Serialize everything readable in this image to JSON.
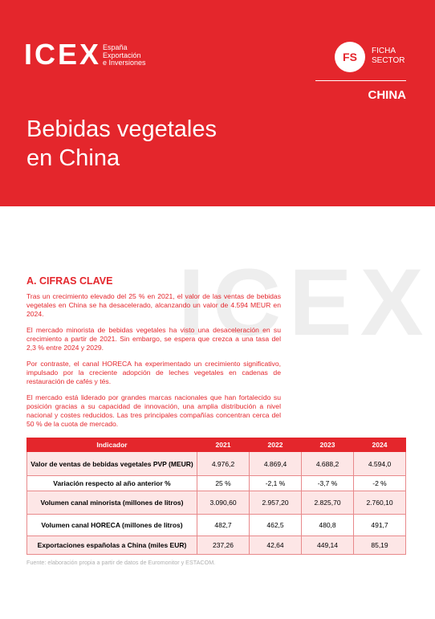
{
  "header": {
    "logo": "ICEX",
    "logo_sub": [
      "España",
      "Exportación",
      "e Inversiones"
    ],
    "badge": "FS",
    "badge_text": [
      "FICHA",
      "SECTOR"
    ],
    "country": "CHINA",
    "title": [
      "Bebidas vegetales",
      "en China"
    ]
  },
  "section": {
    "heading": "A. CIFRAS CLAVE",
    "paragraphs": [
      "Tras un crecimiento elevado del 25 % en 2021, el valor de las ventas de bebidas vegetales en China se ha desacelerado, alcanzando un valor de 4.594 MEUR en 2024.",
      "El mercado minorista de bebidas vegetales ha visto una desaceleración en su crecimiento a partir de 2021. Sin embargo, se espera que crezca a una tasa del 2,3 % entre 2024 y 2029.",
      "Por contraste, el canal HORECA ha experimentado un crecimiento significativo, impulsado por la creciente adopción de leches vegetales en cadenas de restauración de cafés y tés.",
      "El mercado está liderado por grandes marcas nacionales que han fortalecido su posición gracias a su capacidad de innovación, una amplia distribución a nivel nacional y costes reducidos. Las tres principales compañías concentran cerca del 50 % de la cuota de mercado."
    ]
  },
  "table": {
    "columns": [
      "Indicador",
      "2021",
      "2022",
      "2023",
      "2024"
    ],
    "rows": [
      [
        "Valor de ventas de bebidas vegetales PVP (MEUR)",
        "4.976,2",
        "4.869,4",
        "4.688,2",
        "4.594,0"
      ],
      [
        "Variación respecto al año anterior %",
        "25 %",
        "-2,1 %",
        "-3,7 %",
        "-2 %"
      ],
      [
        "Volumen canal minorista (millones de litros)",
        "3.090,60",
        "2.957,20",
        "2.825,70",
        "2.760,10"
      ],
      [
        "Volumen canal HORECA (millones de litros)",
        "482,7",
        "462,5",
        "480,8",
        "491,7"
      ],
      [
        "Exportaciones españolas a China (miles EUR)",
        "237,26",
        "42,64",
        "449,14",
        "85,19"
      ]
    ]
  },
  "source": "Fuente: elaboración propia a partir de datos de Euromonitor y ESTACOM."
}
